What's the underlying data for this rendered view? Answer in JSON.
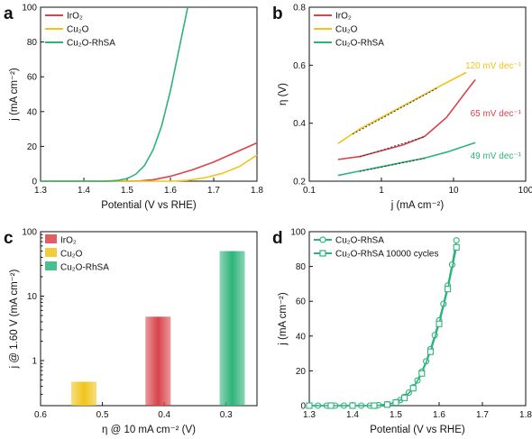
{
  "colors": {
    "irox": "#d9434b",
    "cu2o": "#f0c419",
    "rhsa": "#2db37a"
  },
  "chart_data": [
    {
      "panel": "a",
      "type": "line",
      "xlabel": "Potential (V vs RHE)",
      "ylabel": "j (mA cm⁻²)",
      "xlim": [
        1.3,
        1.8
      ],
      "ylim": [
        0,
        100
      ],
      "xticks": [
        "1.3",
        "1.4",
        "1.5",
        "1.6",
        "1.7",
        "1.8"
      ],
      "yticks": [
        "0",
        "20",
        "40",
        "60",
        "80",
        "100"
      ],
      "legend": "top-left",
      "series": [
        {
          "name": "IrO₂",
          "color": "irox",
          "x": [
            1.3,
            1.5,
            1.53,
            1.56,
            1.6,
            1.65,
            1.7,
            1.75,
            1.8
          ],
          "y": [
            0,
            0,
            0.2,
            0.8,
            2.8,
            6.5,
            11,
            16.5,
            22
          ]
        },
        {
          "name": "Cu₂O",
          "color": "cu2o",
          "x": [
            1.3,
            1.6,
            1.64,
            1.68,
            1.72,
            1.76,
            1.8
          ],
          "y": [
            0,
            0,
            0.5,
            2,
            4.5,
            8.5,
            15
          ]
        },
        {
          "name": "Cu₂O-RhSA",
          "color": "rhsa",
          "x": [
            1.3,
            1.45,
            1.48,
            1.5,
            1.52,
            1.54,
            1.56,
            1.58,
            1.6,
            1.62,
            1.64
          ],
          "y": [
            0,
            0,
            0.5,
            1.5,
            4,
            9,
            18,
            32,
            52,
            76,
            100
          ]
        }
      ]
    },
    {
      "panel": "b",
      "type": "line",
      "xlabel": "j (mA cm⁻²)",
      "ylabel": "η (V)",
      "xscale": "log",
      "xlim": [
        0.1,
        100
      ],
      "ylim": [
        0.2,
        0.8
      ],
      "xticks": [
        "0.1",
        "1",
        "10",
        "100"
      ],
      "yticks": [
        "0.2",
        "0.4",
        "0.6",
        "0.8"
      ],
      "legend": "top-left",
      "series": [
        {
          "name": "IrO₂",
          "color": "irox",
          "x": [
            0.25,
            0.5,
            1,
            2,
            4,
            8,
            14,
            20
          ],
          "y": [
            0.275,
            0.285,
            0.305,
            0.325,
            0.355,
            0.42,
            0.5,
            0.55
          ]
        },
        {
          "name": "Cu₂O",
          "color": "cu2o",
          "x": [
            0.25,
            0.5,
            1,
            2,
            4,
            8,
            15
          ],
          "y": [
            0.33,
            0.38,
            0.42,
            0.46,
            0.5,
            0.54,
            0.575
          ]
        },
        {
          "name": "Cu₂O-RhSA",
          "color": "rhsa",
          "x": [
            0.25,
            0.5,
            1,
            2,
            4,
            8,
            20
          ],
          "y": [
            0.22,
            0.235,
            0.25,
            0.265,
            0.28,
            0.3,
            0.333
          ]
        }
      ],
      "annotations": [
        {
          "text": "120 mV dec⁻¹",
          "color": "cu2o"
        },
        {
          "text": "65 mV dec⁻¹",
          "color": "irox"
        },
        {
          "text": "49 mV dec⁻¹",
          "color": "rhsa"
        }
      ]
    },
    {
      "panel": "c",
      "type": "bar",
      "xlabel": "η @ 10 mA cm⁻² (V)",
      "ylabel": "j @ 1.60 V (mA cm⁻²)",
      "yscale": "log",
      "xlim": [
        0.6,
        0.25
      ],
      "ylim": [
        0.2,
        100
      ],
      "xticks": [
        "0.6",
        "0.5",
        "0.4",
        "0.3"
      ],
      "yticks": [
        "1",
        "10",
        "100"
      ],
      "legend": "top-left",
      "series": [
        {
          "name": "IrO₂",
          "color": "irox",
          "x": 0.41,
          "value": 4.8
        },
        {
          "name": "Cu₂O",
          "color": "cu2o",
          "x": 0.53,
          "value": 0.47
        },
        {
          "name": "Cu₂O-RhSA",
          "color": "rhsa",
          "x": 0.29,
          "value": 50
        }
      ]
    },
    {
      "panel": "d",
      "type": "line",
      "xlabel": "Potential (V vs RHE)",
      "ylabel": "j (mA cm⁻²)",
      "xlim": [
        1.3,
        1.8
      ],
      "ylim": [
        0,
        100
      ],
      "xticks": [
        "1.3",
        "1.4",
        "1.5",
        "1.6",
        "1.7",
        "1.8"
      ],
      "yticks": [
        "0",
        "20",
        "40",
        "60",
        "80",
        "100"
      ],
      "legend": "top-left",
      "series": [
        {
          "name": "Cu₂O-RhSA",
          "color": "rhsa",
          "marker": "circle",
          "x": [
            1.3,
            1.32,
            1.34,
            1.36,
            1.38,
            1.4,
            1.42,
            1.44,
            1.46,
            1.48,
            1.5,
            1.51,
            1.52,
            1.53,
            1.54,
            1.55,
            1.56,
            1.57,
            1.58,
            1.59,
            1.6,
            1.61,
            1.62,
            1.63,
            1.64
          ],
          "y": [
            0,
            0,
            0,
            0,
            0,
            0,
            0,
            0,
            0.3,
            0.8,
            2,
            3.2,
            5,
            7.5,
            10.5,
            14.5,
            19.5,
            25.5,
            32.5,
            40.5,
            49,
            58.5,
            69,
            81,
            95
          ]
        },
        {
          "name": "Cu₂O-RhSA 10000 cycles",
          "color": "rhsa",
          "marker": "square",
          "x": [
            1.3,
            1.35,
            1.4,
            1.45,
            1.48,
            1.5,
            1.52,
            1.54,
            1.56,
            1.58,
            1.6,
            1.62,
            1.64
          ],
          "y": [
            0,
            0,
            0,
            0,
            0.6,
            1.8,
            4.5,
            10,
            18.5,
            31,
            47,
            67,
            91
          ]
        }
      ]
    }
  ]
}
